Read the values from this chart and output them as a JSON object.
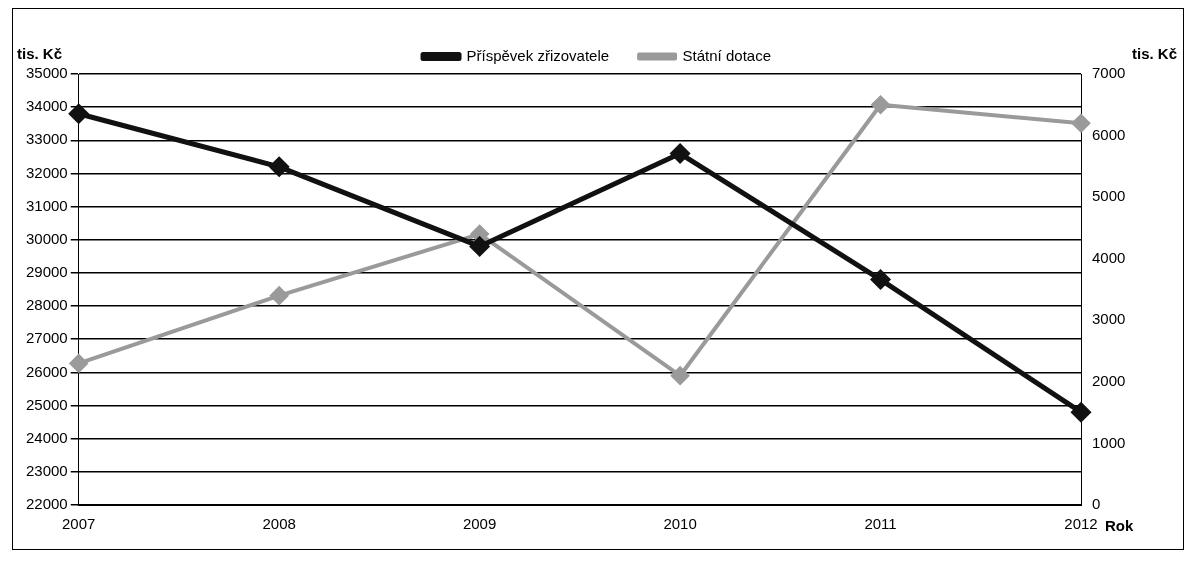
{
  "chart_data": {
    "type": "line",
    "xlabel": "Rok",
    "ylabel": "tis. Kč",
    "y2label": "tis. Kč",
    "categories": [
      "2007",
      "2008",
      "2009",
      "2010",
      "2011",
      "2012"
    ],
    "series": [
      {
        "name": "Příspěvek zřizovatele",
        "color": "#111111",
        "values": [
          33800,
          32200,
          29800,
          32600,
          28800,
          24800
        ]
      },
      {
        "name": "Státní dotace",
        "color": "#9a9a9a",
        "axis": "y2",
        "values": [
          2300,
          3400,
          4400,
          2100,
          6500,
          6200
        ]
      }
    ],
    "ylim": [
      22000,
      35000
    ],
    "yticks": [
      22000,
      23000,
      24000,
      25000,
      26000,
      27000,
      28000,
      29000,
      30000,
      31000,
      32000,
      33000,
      34000,
      35000
    ],
    "y2lim": [
      0,
      7000
    ],
    "y2ticks": [
      0,
      1000,
      2000,
      3000,
      4000,
      5000,
      6000,
      7000
    ],
    "grid": "y",
    "legend": "top",
    "marker": "diamond",
    "line_style": "solid"
  }
}
